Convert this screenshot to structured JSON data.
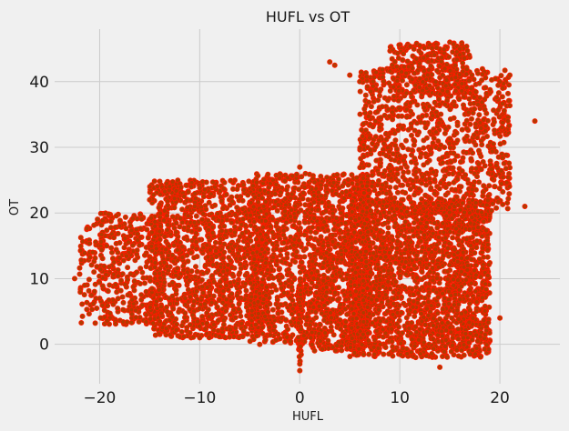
{
  "chart_data": {
    "type": "scatter",
    "title": "HUFL vs OT",
    "xlabel": "HUFL",
    "ylabel": "OT",
    "xlim": [
      -24.5,
      26
    ],
    "ylim": [
      -6,
      48
    ],
    "xticks": [
      -20,
      -10,
      0,
      10,
      20
    ],
    "yticks": [
      0,
      10,
      20,
      30,
      40
    ],
    "grid": true,
    "legend": "none",
    "marker_face_color": "#b33a00",
    "marker_edge_color": "#ff1a00",
    "background_color": "#f0f0f0",
    "point_count_approx": 17000,
    "point_groups": [
      {
        "x_range": [
          -22,
          -14
        ],
        "y_range": [
          3,
          20
        ],
        "share": 0.06
      },
      {
        "x_range": [
          -15,
          -3
        ],
        "y_range": [
          1,
          25
        ],
        "share": 0.2
      },
      {
        "x_range": [
          -5,
          1
        ],
        "y_range": [
          0,
          26
        ],
        "share": 0.1
      },
      {
        "x_range": [
          1,
          7
        ],
        "y_range": [
          -1,
          26
        ],
        "share": 0.14
      },
      {
        "x_range": [
          5,
          19
        ],
        "y_range": [
          -2,
          22
        ],
        "share": 0.3
      },
      {
        "x_range": [
          6,
          21
        ],
        "y_range": [
          20,
          42
        ],
        "share": 0.16
      },
      {
        "x_range": [
          9,
          17
        ],
        "y_range": [
          38,
          46
        ],
        "share": 0.04
      }
    ],
    "points_sample": [
      {
        "x": -22.5,
        "y": 10
      },
      {
        "x": -21.5,
        "y": 9
      },
      {
        "x": -20,
        "y": 7
      },
      {
        "x": -18,
        "y": 18
      },
      {
        "x": -15,
        "y": 22
      },
      {
        "x": -13,
        "y": 24
      },
      {
        "x": -10,
        "y": 1
      },
      {
        "x": -4,
        "y": 0
      },
      {
        "x": 0,
        "y": -4
      },
      {
        "x": 0,
        "y": -3
      },
      {
        "x": 0,
        "y": 27
      },
      {
        "x": 3,
        "y": 43
      },
      {
        "x": 3.5,
        "y": 42.5
      },
      {
        "x": 5,
        "y": 41
      },
      {
        "x": 6,
        "y": 40
      },
      {
        "x": 12,
        "y": 45.5
      },
      {
        "x": 15,
        "y": 46
      },
      {
        "x": 16,
        "y": 45
      },
      {
        "x": 20,
        "y": 40
      },
      {
        "x": 21,
        "y": 41
      },
      {
        "x": 23.5,
        "y": 34
      },
      {
        "x": 22.5,
        "y": 21
      },
      {
        "x": 20,
        "y": 4
      },
      {
        "x": 14,
        "y": -3.5
      }
    ]
  }
}
